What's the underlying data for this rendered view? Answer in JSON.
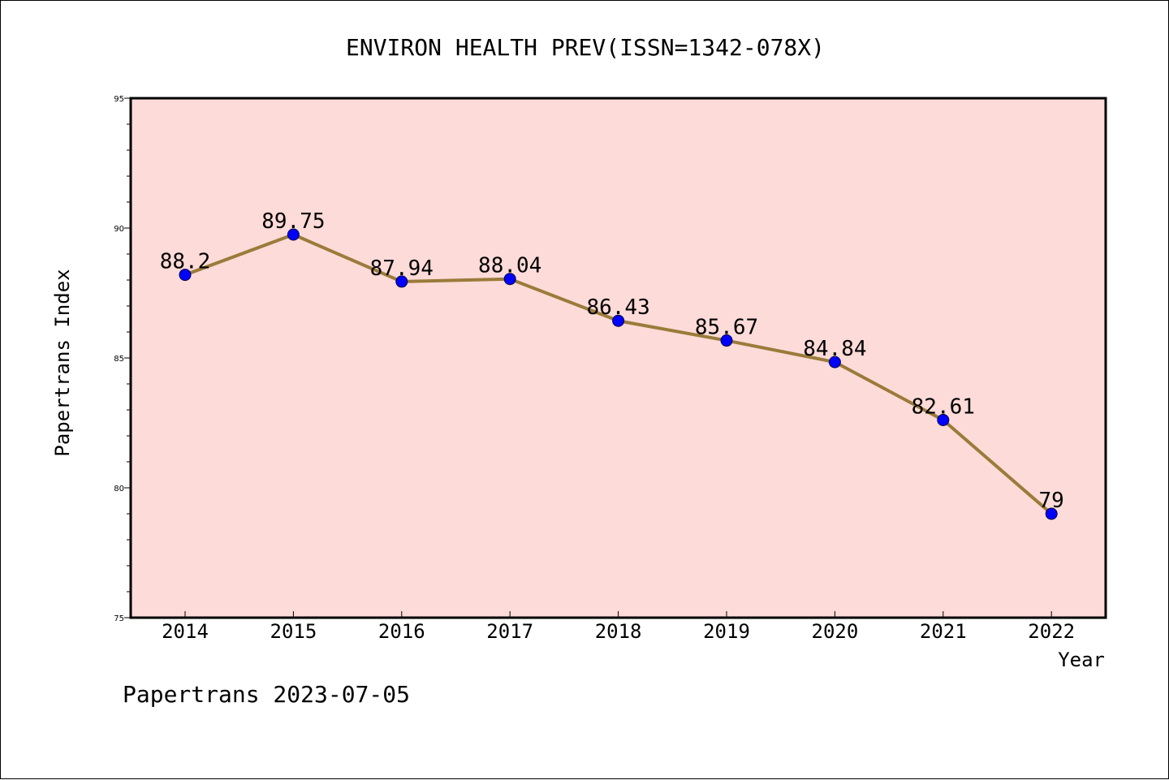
{
  "chart_data": {
    "type": "line",
    "title": "ENVIRON HEALTH PREV(ISSN=1342-078X)",
    "xlabel": "Year",
    "ylabel": "Papertrans Index",
    "categories": [
      "2014",
      "2015",
      "2016",
      "2017",
      "2018",
      "2019",
      "2020",
      "2021",
      "2022"
    ],
    "series": [
      {
        "values": [
          88.2,
          89.75,
          87.94,
          88.04,
          86.43,
          85.67,
          84.84,
          82.61,
          79
        ],
        "labels": [
          "88.2",
          "89.75",
          "87.94",
          "88.04",
          "86.43",
          "85.67",
          "84.84",
          "82.61",
          "79"
        ]
      }
    ],
    "ylim": [
      75,
      95
    ],
    "yticks": [
      "75",
      "80",
      "85",
      "90",
      "95"
    ],
    "grid": false,
    "plot_background": "#fddbd8",
    "line_color": "#9a7b3a",
    "marker_color": "#0000ff"
  },
  "footer": {
    "text": "Papertrans 2023-07-05"
  }
}
